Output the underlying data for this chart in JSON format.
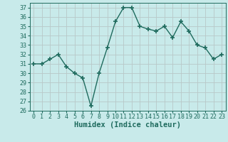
{
  "x": [
    0,
    1,
    2,
    3,
    4,
    5,
    6,
    7,
    8,
    9,
    10,
    11,
    12,
    13,
    14,
    15,
    16,
    17,
    18,
    19,
    20,
    21,
    22,
    23
  ],
  "y": [
    31,
    31,
    31.5,
    32,
    30.7,
    30,
    29.5,
    26.5,
    30,
    32.7,
    35.5,
    37,
    37,
    35,
    34.7,
    34.5,
    35,
    33.8,
    35.5,
    34.5,
    33,
    32.7,
    31.5,
    32
  ],
  "line_color": "#1f6b5e",
  "marker": "+",
  "marker_size": 4,
  "bg_color": "#c8eaea",
  "grid_color": "#b8c8c8",
  "xlabel": "Humidex (Indice chaleur)",
  "ylim": [
    26,
    37.5
  ],
  "xlim": [
    -0.5,
    23.5
  ],
  "yticks": [
    26,
    27,
    28,
    29,
    30,
    31,
    32,
    33,
    34,
    35,
    36,
    37
  ],
  "xticks": [
    0,
    1,
    2,
    3,
    4,
    5,
    6,
    7,
    8,
    9,
    10,
    11,
    12,
    13,
    14,
    15,
    16,
    17,
    18,
    19,
    20,
    21,
    22,
    23
  ],
  "tick_fontsize": 6,
  "xlabel_fontsize": 7.5,
  "line_width": 1.0
}
